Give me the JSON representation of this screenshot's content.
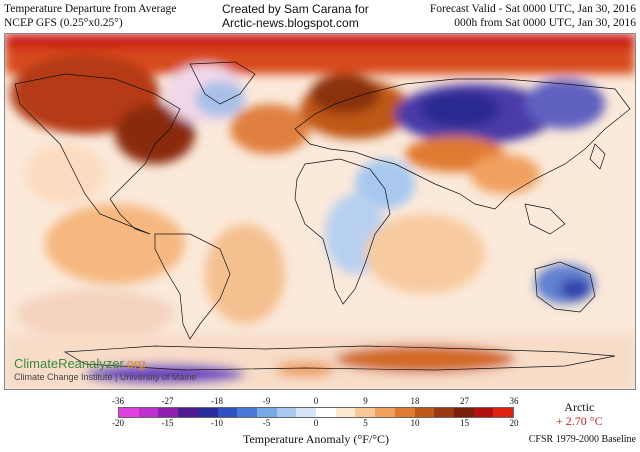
{
  "header": {
    "left_line1": "Temperature Departure from Average",
    "left_line2": "NCEP GFS (0.25°x0.25°)",
    "center_line1": "Created by Sam Carana for",
    "center_line2": "Arctic-news.blogspot.com",
    "right_line1": "Forecast Valid - Sat 0000 UTC, Jan 30, 2016",
    "right_line2": "000h from Sat 0000 UTC, Jan 30, 2016"
  },
  "watermark": {
    "name_main": "ClimateReanalyzer",
    "name_suffix": ".org",
    "subtitle": "Climate Change Institute | University of Maine"
  },
  "legend": {
    "fahrenheit_ticks": [
      "-36",
      "-27",
      "-18",
      "-9",
      "0",
      "9",
      "18",
      "27",
      "36"
    ],
    "celsius_ticks": [
      "-20",
      "-15",
      "-10",
      "-5",
      "0",
      "5",
      "10",
      "15",
      "20"
    ],
    "title": "Temperature Anomaly (°F/°C)",
    "colors": [
      "#e040e0",
      "#c030d0",
      "#9020b0",
      "#501a90",
      "#2a2a9a",
      "#3050c0",
      "#4a78d8",
      "#78a8e8",
      "#a8c8f0",
      "#d4e4f8",
      "#ffffff",
      "#fde8d0",
      "#f9c89a",
      "#f2a060",
      "#e07a30",
      "#c05818",
      "#9a3810",
      "#7a1e0a",
      "#b01010",
      "#e02010"
    ]
  },
  "arctic": {
    "label": "Arctic",
    "value": "+ 2.70 °C"
  },
  "baseline": "CFSR 1979-2000 Baseline"
}
